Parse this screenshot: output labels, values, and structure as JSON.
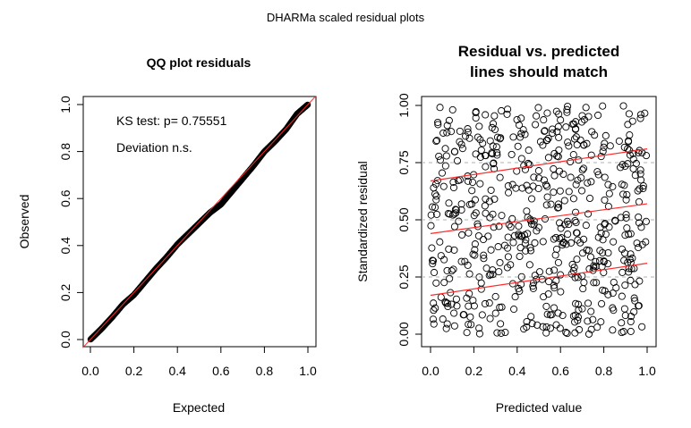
{
  "figure": {
    "title": "DHARMa scaled residual plots"
  },
  "chart_data": [
    {
      "type": "scatter",
      "title": "QQ plot residuals",
      "xlabel": "Expected",
      "ylabel": "Observed",
      "xlim": [
        0,
        1
      ],
      "ylim": [
        0,
        1
      ],
      "x_ticks": [
        0.0,
        0.2,
        0.4,
        0.6,
        0.8,
        1.0
      ],
      "x_tick_labels": [
        "0.0",
        "0.2",
        "0.4",
        "0.6",
        "0.8",
        "1.0"
      ],
      "y_ticks": [
        0.0,
        0.2,
        0.4,
        0.6,
        0.8,
        1.0
      ],
      "y_tick_labels": [
        "0.0",
        "0.2",
        "0.4",
        "0.6",
        "0.8",
        "1.0"
      ],
      "annotations": [
        "KS test: p= 0.75551",
        "Deviation  n.s."
      ],
      "reference_line": {
        "from": [
          0,
          0
        ],
        "to": [
          1,
          1
        ],
        "color": "#ff2b2b"
      },
      "series": [
        {
          "name": "residual quantiles",
          "x": [
            0.0,
            0.05,
            0.1,
            0.15,
            0.2,
            0.25,
            0.3,
            0.35,
            0.4,
            0.45,
            0.5,
            0.55,
            0.6,
            0.65,
            0.7,
            0.75,
            0.8,
            0.85,
            0.9,
            0.95,
            1.0
          ],
          "y": [
            0.0,
            0.045,
            0.095,
            0.15,
            0.19,
            0.245,
            0.3,
            0.35,
            0.405,
            0.45,
            0.495,
            0.54,
            0.575,
            0.63,
            0.685,
            0.74,
            0.8,
            0.845,
            0.895,
            0.96,
            1.0
          ]
        }
      ]
    },
    {
      "type": "scatter",
      "title": "Residual vs. predicted\nlines should match",
      "xlabel": "Predicted value",
      "ylabel": "Standardized residual",
      "xlim": [
        0,
        1
      ],
      "ylim": [
        0,
        1
      ],
      "x_ticks": [
        0.0,
        0.2,
        0.4,
        0.6,
        0.8,
        1.0
      ],
      "x_tick_labels": [
        "0.0",
        "0.2",
        "0.4",
        "0.6",
        "0.8",
        "1.0"
      ],
      "y_ticks": [
        0.0,
        0.25,
        0.5,
        0.75,
        1.0
      ],
      "y_tick_labels": [
        "0.00",
        "0.25",
        "0.50",
        "0.75",
        "1.00"
      ],
      "reference_lines": [
        0.25,
        0.5,
        0.75
      ],
      "quantile_lines": [
        {
          "name": "q25",
          "x": [
            0,
            1
          ],
          "y": [
            0.17,
            0.31
          ],
          "color": "#ff2b2b"
        },
        {
          "name": "q50",
          "x": [
            0,
            1
          ],
          "y": [
            0.44,
            0.57
          ],
          "color": "#ff2b2b"
        },
        {
          "name": "q75",
          "x": [
            0,
            1
          ],
          "y": [
            0.67,
            0.81
          ],
          "color": "#ff2b2b"
        }
      ],
      "series": [
        {
          "name": "residuals",
          "n_points": 600,
          "x_range": [
            0,
            1
          ],
          "y_range": [
            0,
            1
          ],
          "distribution": "uniform"
        }
      ]
    }
  ]
}
